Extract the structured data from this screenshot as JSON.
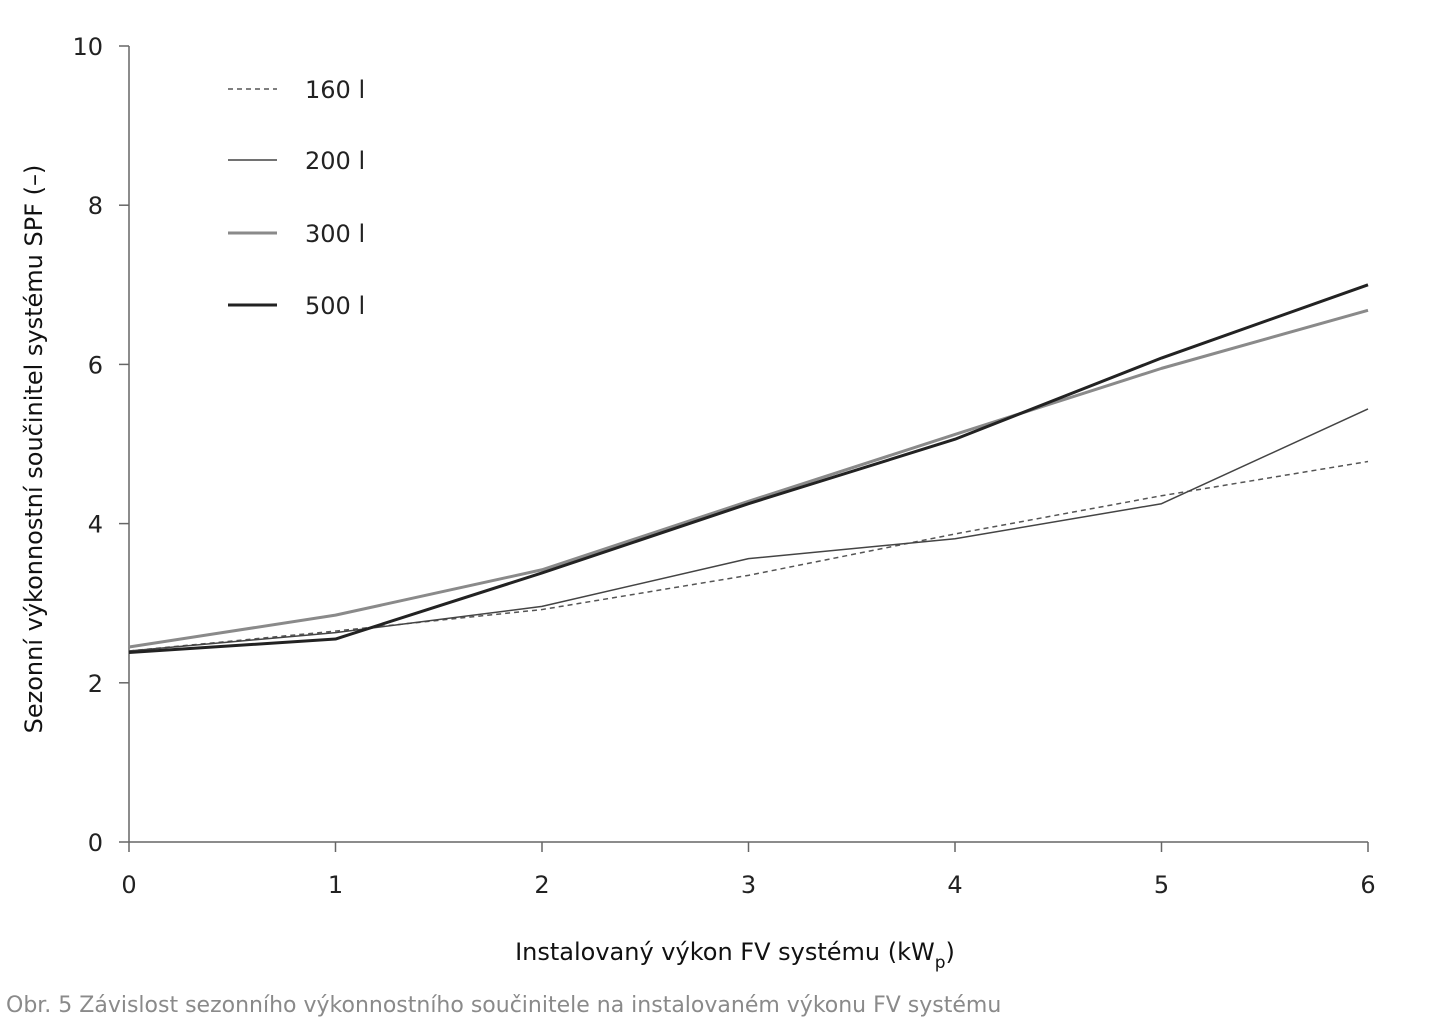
{
  "caption": "Obr. 5 Závislost sezonního výkonnostního součinitele na instalovaném výkonu FV systému",
  "chart_data": {
    "type": "line",
    "x": [
      0,
      1,
      2,
      3,
      4,
      5,
      6
    ],
    "xlabel": "Instalovaný výkon FV systému (kW",
    "xlabel_subscript": "p",
    "xlabel_suffix": ")",
    "ylabel": "Sezonní výkonnostní součinitel systému SPF (–)",
    "xlim": [
      0,
      6
    ],
    "ylim": [
      0,
      10
    ],
    "xticks": [
      "0",
      "1",
      "2",
      "3",
      "4",
      "5",
      "6"
    ],
    "yticks": [
      "0",
      "2",
      "4",
      "6",
      "8",
      "10"
    ],
    "grid": false,
    "legend_position": "top-left",
    "series": [
      {
        "name": "160 l",
        "values": [
          2.4,
          2.65,
          2.92,
          3.35,
          3.87,
          4.35,
          4.78
        ],
        "color": "#555555",
        "style": "dashed",
        "width": 1.5
      },
      {
        "name": "200 l",
        "values": [
          2.4,
          2.63,
          2.96,
          3.56,
          3.81,
          4.25,
          5.44
        ],
        "color": "#444444",
        "style": "solid",
        "width": 1.5
      },
      {
        "name": "300 l",
        "values": [
          2.45,
          2.85,
          3.42,
          4.28,
          5.12,
          5.95,
          6.68
        ],
        "color": "#8a8a8a",
        "style": "solid",
        "width": 3
      },
      {
        "name": "500 l",
        "values": [
          2.38,
          2.55,
          3.38,
          4.25,
          5.06,
          6.08,
          7.0
        ],
        "color": "#222222",
        "style": "solid",
        "width": 3
      }
    ]
  }
}
